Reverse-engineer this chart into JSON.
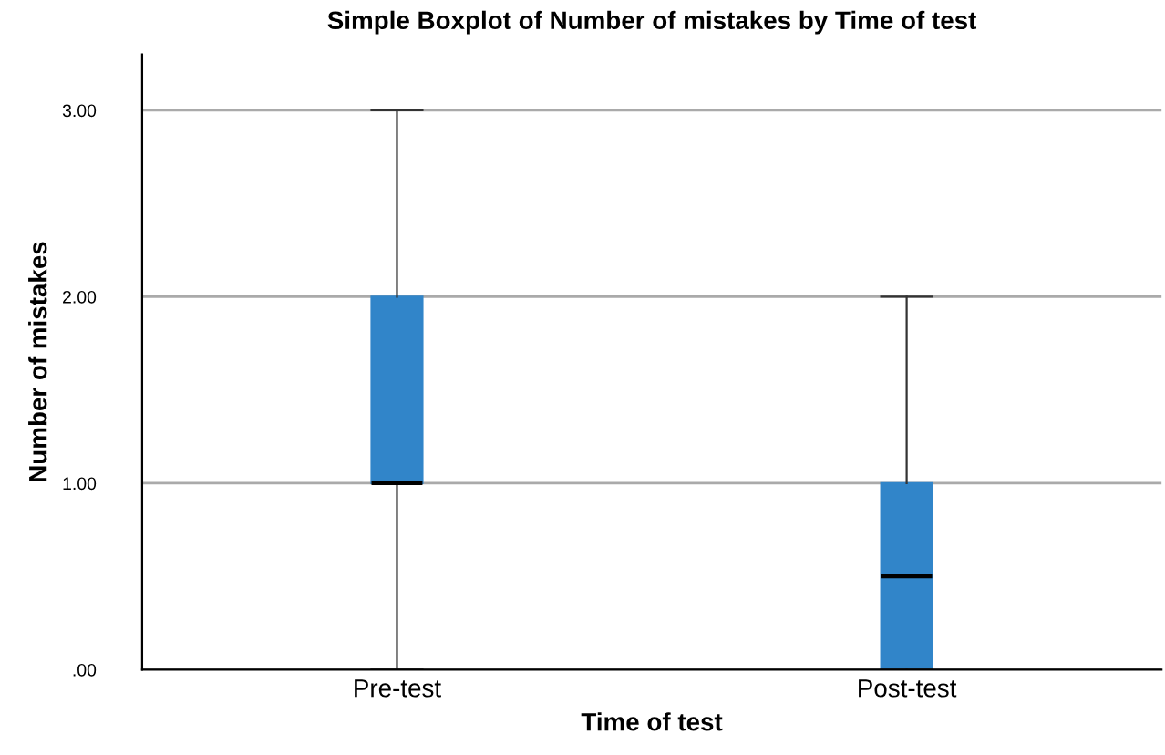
{
  "chart_data": {
    "type": "box",
    "title": "Simple Boxplot of Number of mistakes by Time of test",
    "xlabel": "Time of test",
    "ylabel": "Number of mistakes",
    "categories": [
      "Pre-test",
      "Post-test"
    ],
    "boxes": [
      {
        "low": 0,
        "q1": 1,
        "median": 1,
        "q3": 2,
        "high": 3
      },
      {
        "low": 0,
        "q1": 0,
        "median": 0.5,
        "q3": 1,
        "high": 2
      }
    ],
    "color": "#3185c9",
    "ylim": [
      0,
      3.3
    ],
    "yticks": [
      {
        "value": 0,
        "label": ".00"
      },
      {
        "value": 1,
        "label": "1.00"
      },
      {
        "value": 2,
        "label": "2.00"
      },
      {
        "value": 3,
        "label": "3.00"
      }
    ],
    "grid": "y"
  }
}
